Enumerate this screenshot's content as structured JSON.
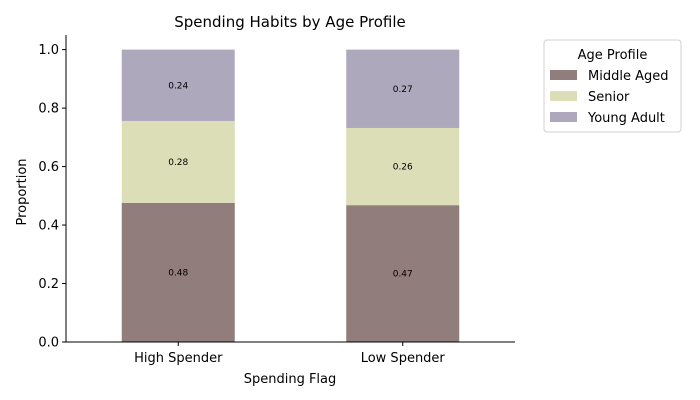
{
  "chart_data": {
    "type": "bar",
    "stacked": true,
    "title": "Spending Habits by Age Profile",
    "xlabel": "Spending Flag",
    "ylabel": "Proportion",
    "categories": [
      "High Spender",
      "Low Spender"
    ],
    "ylim": [
      0,
      1.05
    ],
    "yticks": [
      "0.0",
      "0.2",
      "0.4",
      "0.6",
      "0.8",
      "1.0"
    ],
    "grid": false,
    "legend": {
      "title": "Age Profile",
      "placement": "outside-top-right"
    },
    "series": [
      {
        "name": "Middle Aged",
        "values": [
          0.476,
          0.468
        ],
        "labels": [
          "0.48",
          "0.47"
        ],
        "color": "#917d7b"
      },
      {
        "name": "Senior",
        "values": [
          0.28,
          0.264
        ],
        "labels": [
          "0.28",
          "0.26"
        ],
        "color": "#dcdeb8"
      },
      {
        "name": "Young Adult",
        "values": [
          0.244,
          0.268
        ],
        "labels": [
          "0.24",
          "0.27"
        ],
        "color": "#aea8bd"
      }
    ]
  }
}
